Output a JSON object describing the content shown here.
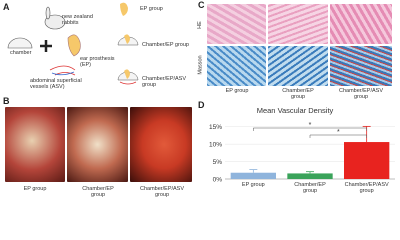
{
  "panel_a": {
    "label": "A",
    "rabbits": "new zealand rabbits",
    "chamber": "chamber",
    "prosthesis": "ear prosthesis (EP)",
    "vessels": "abdominal superficial vessels (ASV)",
    "groups": [
      "EP group",
      "Chamber/EP group",
      "Chamber/EP/ASV group"
    ]
  },
  "panel_b": {
    "label": "B",
    "groups": [
      "EP group",
      "Chamber/EP group",
      "Chamber/EP/ASV group"
    ]
  },
  "panel_c": {
    "label": "C",
    "stains": [
      "HE",
      "Masson"
    ],
    "groups": [
      "EP group",
      "Chamber/EP group",
      "Chamber/EP/ASV group"
    ]
  },
  "panel_d": {
    "label": "D"
  },
  "chart_data": {
    "type": "bar",
    "title": "Mean Vascular Density",
    "categories": [
      "EP group",
      "Chamber/EP group",
      "Chamber/EP/ASV group"
    ],
    "values": [
      1.8,
      1.6,
      10.6
    ],
    "errors": [
      0.9,
      0.5,
      4.5
    ],
    "colors": [
      "#8fb4dc",
      "#3aa35a",
      "#e8231f"
    ],
    "ylim": [
      0,
      17.5
    ],
    "yticks": [
      {
        "value": 0,
        "label": "0%"
      },
      {
        "value": 5,
        "label": "5%"
      },
      {
        "value": 10,
        "label": "10%"
      },
      {
        "value": 15,
        "label": "15%"
      }
    ],
    "significance": [
      "*",
      "*"
    ]
  }
}
